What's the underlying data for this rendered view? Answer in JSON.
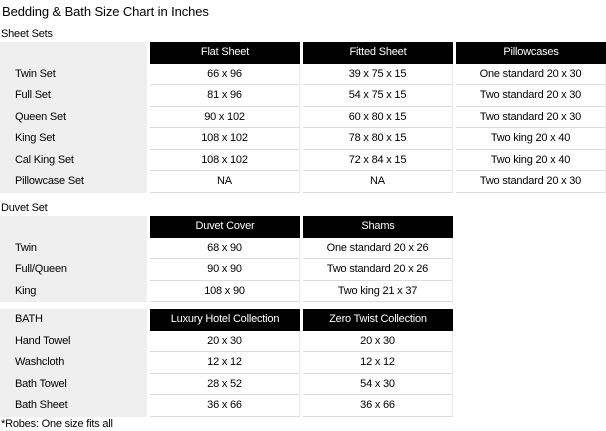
{
  "title": "Bedding & Bath Size Chart in Inches",
  "footnote": "*Robes: One size fits all",
  "colors": {
    "header_bg": "#000000",
    "header_text": "#ffffff",
    "label_column_bg": "#efefef",
    "row_separator": "#dcdcdc",
    "page_bg": "#ffffff"
  },
  "sheet_sets": {
    "section_label": "Sheet Sets",
    "corner_label": "",
    "columns": [
      "Flat Sheet",
      "Fitted Sheet",
      "Pillowcases"
    ],
    "rows": [
      {
        "label": "Twin Set",
        "values": [
          "66 x 96",
          "39 x 75 x 15",
          "One standard 20 x 30"
        ]
      },
      {
        "label": "Full Set",
        "values": [
          "81 x 96",
          "54 x 75 x 15",
          "Two standard 20 x 30"
        ]
      },
      {
        "label": "Queen Set",
        "values": [
          "90 x 102",
          "60 x 80 x 15",
          "Two standard 20 x 30"
        ]
      },
      {
        "label": "King Set",
        "values": [
          "108 x 102",
          "78 x 80 x 15",
          "Two king 20 x 40"
        ]
      },
      {
        "label": "Cal King Set",
        "values": [
          "108 x 102",
          "72 x 84 x 15",
          "Two king 20 x 40"
        ]
      },
      {
        "label": "Pillowcase Set",
        "values": [
          "NA",
          "NA",
          "Two standard 20 x 30"
        ]
      }
    ]
  },
  "duvet_set": {
    "section_label": "Duvet Set",
    "corner_label": "",
    "columns": [
      "Duvet Cover",
      "Shams"
    ],
    "rows": [
      {
        "label": "Twin",
        "values": [
          "68 x 90",
          "One standard 20 x 26"
        ]
      },
      {
        "label": "Full/Queen",
        "values": [
          "90 x 90",
          "Two standard 20 x 26"
        ]
      },
      {
        "label": "King",
        "values": [
          "108 x 90",
          "Two king 21 x 37"
        ]
      }
    ]
  },
  "bath": {
    "corner_label": "BATH",
    "columns": [
      "Luxury Hotel Collection",
      "Zero Twist Collection"
    ],
    "rows": [
      {
        "label": "Hand Towel",
        "values": [
          "20 x 30",
          "20 x 30"
        ]
      },
      {
        "label": "Washcloth",
        "values": [
          "12 x 12",
          "12 x 12"
        ]
      },
      {
        "label": "Bath Towel",
        "values": [
          "28 x 52",
          "54 x 30"
        ]
      },
      {
        "label": "Bath Sheet",
        "values": [
          "36 x 66",
          "36 x 66"
        ]
      }
    ]
  }
}
